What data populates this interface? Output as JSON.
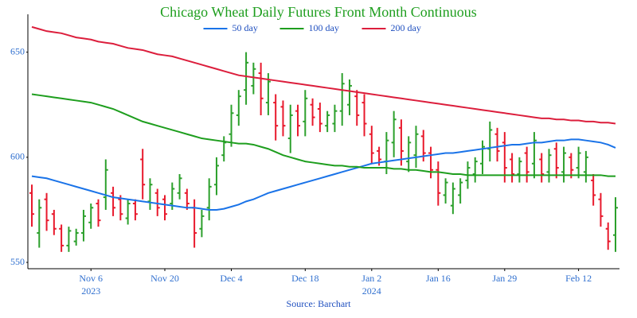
{
  "chart_data": {
    "type": "ohlc",
    "title": "Chicago Wheat Daily Futures Front Month Continuous",
    "source": "Source: Barchart",
    "dates": [
      "2023-10-25",
      "2023-10-26",
      "2023-10-27",
      "2023-10-30",
      "2023-10-31",
      "2023-11-01",
      "2023-11-02",
      "2023-11-03",
      "2023-11-06",
      "2023-11-07",
      "2023-11-08",
      "2023-11-09",
      "2023-11-10",
      "2023-11-13",
      "2023-11-14",
      "2023-11-15",
      "2023-11-16",
      "2023-11-17",
      "2023-11-20",
      "2023-11-21",
      "2023-11-22",
      "2023-11-24",
      "2023-11-27",
      "2023-11-28",
      "2023-11-29",
      "2023-11-30",
      "2023-12-01",
      "2023-12-04",
      "2023-12-05",
      "2023-12-06",
      "2023-12-07",
      "2023-12-08",
      "2023-12-11",
      "2023-12-12",
      "2023-12-13",
      "2023-12-14",
      "2023-12-15",
      "2023-12-18",
      "2023-12-19",
      "2023-12-20",
      "2023-12-21",
      "2023-12-22",
      "2023-12-26",
      "2023-12-27",
      "2023-12-28",
      "2023-12-29",
      "2024-01-02",
      "2024-01-03",
      "2024-01-04",
      "2024-01-05",
      "2024-01-08",
      "2024-01-09",
      "2024-01-10",
      "2024-01-11",
      "2024-01-12",
      "2024-01-16",
      "2024-01-17",
      "2024-01-18",
      "2024-01-19",
      "2024-01-22",
      "2024-01-23",
      "2024-01-24",
      "2024-01-25",
      "2024-01-26",
      "2024-01-29",
      "2024-01-30",
      "2024-01-31",
      "2024-02-01",
      "2024-02-02",
      "2024-02-05",
      "2024-02-06",
      "2024-02-07",
      "2024-02-08",
      "2024-02-09",
      "2024-02-12",
      "2024-02-13",
      "2024-02-14",
      "2024-02-15",
      "2024-02-16",
      "2024-02-20"
    ],
    "open": [
      583,
      564,
      580,
      573,
      566,
      558,
      560,
      564,
      569,
      578,
      581,
      583,
      580,
      571,
      578,
      599,
      579,
      583,
      580,
      578,
      583,
      583,
      576,
      566,
      576,
      587,
      601,
      611,
      620,
      632,
      634,
      640,
      626,
      626,
      624,
      609,
      622,
      617,
      625,
      623,
      615,
      616,
      622,
      625,
      629,
      626,
      611,
      603,
      598,
      607,
      614,
      598,
      601,
      610,
      602,
      594,
      582,
      577,
      582,
      589,
      592,
      597,
      604,
      611,
      607,
      599,
      592,
      602,
      597,
      599,
      593,
      604,
      593,
      600,
      595,
      593,
      589,
      580,
      566,
      563
    ],
    "high": [
      587,
      580,
      583,
      575,
      568,
      567,
      566,
      575,
      578,
      580,
      599,
      586,
      582,
      580,
      580,
      604,
      590,
      585,
      582,
      588,
      592,
      585,
      580,
      575,
      590,
      600,
      610,
      625,
      632,
      650,
      645,
      645,
      640,
      630,
      627,
      625,
      625,
      632,
      628,
      626,
      622,
      625,
      640,
      637,
      632,
      630,
      615,
      605,
      612,
      622,
      618,
      610,
      615,
      613,
      605,
      598,
      590,
      588,
      590,
      598,
      600,
      608,
      617,
      614,
      612,
      602,
      600,
      605,
      612,
      602,
      604,
      607,
      605,
      602,
      605,
      603,
      592,
      583,
      569,
      581
    ],
    "low": [
      567,
      557,
      565,
      563,
      555,
      555,
      558,
      560,
      566,
      567,
      575,
      572,
      570,
      568,
      570,
      580,
      575,
      572,
      570,
      575,
      580,
      575,
      557,
      562,
      570,
      582,
      598,
      605,
      615,
      625,
      630,
      620,
      620,
      608,
      610,
      602,
      610,
      610,
      615,
      612,
      612,
      612,
      615,
      620,
      615,
      610,
      597,
      596,
      592,
      600,
      596,
      593,
      595,
      598,
      590,
      577,
      578,
      573,
      578,
      585,
      588,
      592,
      598,
      598,
      588,
      588,
      588,
      588,
      590,
      588,
      588,
      590,
      588,
      590,
      590,
      588,
      577,
      567,
      556,
      555
    ],
    "close": [
      573,
      576,
      570,
      566,
      558,
      565,
      564,
      572,
      576,
      570,
      594,
      576,
      573,
      578,
      573,
      587,
      587,
      576,
      573,
      585,
      590,
      578,
      564,
      572,
      586,
      596,
      607,
      621,
      629,
      645,
      642,
      628,
      636,
      615,
      615,
      620,
      615,
      628,
      619,
      616,
      620,
      622,
      635,
      634,
      620,
      616,
      602,
      599,
      608,
      618,
      603,
      607,
      611,
      602,
      594,
      583,
      588,
      585,
      588,
      595,
      598,
      605,
      613,
      603,
      595,
      592,
      598,
      593,
      608,
      592,
      601,
      595,
      602,
      594,
      602,
      600,
      582,
      572,
      560,
      576
    ],
    "increasing_color": "#2ca02c",
    "decreasing_color": "#e8192c",
    "lines": [
      {
        "name": "50 day",
        "color": "#1a73e8",
        "values": [
          591,
          590.5,
          590,
          589,
          588,
          587,
          586,
          585,
          584,
          583,
          582,
          581,
          580.5,
          580,
          579.5,
          579,
          578.5,
          578,
          577.5,
          577,
          576.5,
          576,
          576,
          575.5,
          575,
          575,
          575.5,
          576.5,
          577.5,
          579,
          580,
          581.5,
          583,
          584,
          585,
          586,
          587,
          588,
          589,
          590,
          591,
          592,
          593,
          594,
          595,
          596,
          597,
          597.5,
          598,
          598.5,
          599,
          599.5,
          600,
          600.5,
          601,
          601.5,
          602,
          602,
          602.5,
          603,
          603.5,
          604,
          604.5,
          605,
          605.5,
          606,
          606,
          606.5,
          607,
          607,
          607.5,
          608,
          608,
          608.5,
          608.5,
          608,
          607.5,
          607,
          606,
          604.5
        ]
      },
      {
        "name": "100 day",
        "color": "#1e9e1e",
        "values": [
          630,
          629.5,
          629,
          628.5,
          628,
          627.5,
          627,
          626.5,
          626,
          625,
          624,
          623,
          621.5,
          620,
          618.5,
          617,
          616,
          615,
          614,
          613,
          612,
          611,
          610,
          609,
          608.5,
          608,
          607.5,
          607,
          606.5,
          606.5,
          606,
          605,
          604,
          602.5,
          601,
          600,
          599,
          598,
          597.5,
          597,
          596.5,
          596,
          596,
          595.5,
          595.5,
          595,
          595,
          595,
          595,
          594.5,
          594.5,
          594,
          594,
          593.5,
          593,
          593,
          592.5,
          592,
          592,
          591.5,
          591.5,
          591.5,
          591.5,
          591.5,
          591.5,
          591.5,
          591.5,
          591.5,
          591.5,
          591.5,
          591.5,
          591.5,
          591.5,
          591.5,
          591.5,
          591.5,
          591.5,
          591.5,
          591,
          591
        ]
      },
      {
        "name": "200 day",
        "color": "#dc1e3c",
        "values": [
          662,
          661,
          660,
          659.5,
          659,
          658,
          657,
          656.5,
          656,
          655,
          654.5,
          654,
          653,
          652,
          651.5,
          651,
          650,
          649,
          648.5,
          648,
          647,
          646,
          645,
          644,
          643,
          642,
          641,
          640,
          639,
          638.5,
          638,
          637.5,
          637,
          636.5,
          636,
          635.5,
          635,
          634.5,
          634,
          633.5,
          633,
          632.5,
          632,
          631.5,
          631,
          630.5,
          630,
          629.5,
          629,
          628.5,
          628,
          627.5,
          627,
          626.5,
          626,
          625.5,
          625,
          624.5,
          624,
          623.5,
          623,
          622.5,
          622,
          621.5,
          621,
          620.5,
          620,
          619.5,
          619,
          618.5,
          618.5,
          618,
          618,
          617.5,
          617.5,
          617,
          617,
          616.5,
          616.5,
          616
        ]
      }
    ],
    "ylim": [
      547,
      668
    ],
    "yticks": [
      550,
      600,
      650
    ],
    "xticks": [
      {
        "value": "2023-11-06",
        "label": "Nov 6",
        "label2": "2023"
      },
      {
        "value": "2023-11-20",
        "label": "Nov 20"
      },
      {
        "value": "2023-12-04",
        "label": "Dec 4"
      },
      {
        "value": "2023-12-18",
        "label": "Dec 18"
      },
      {
        "value": "2024-01-02",
        "label": "Jan 2",
        "label2": "2024"
      },
      {
        "value": "2024-01-16",
        "label": "Jan 16"
      },
      {
        "value": "2024-01-29",
        "label": "Jan 29"
      },
      {
        "value": "2024-02-12",
        "label": "Feb 12"
      }
    ],
    "legend": "top"
  }
}
